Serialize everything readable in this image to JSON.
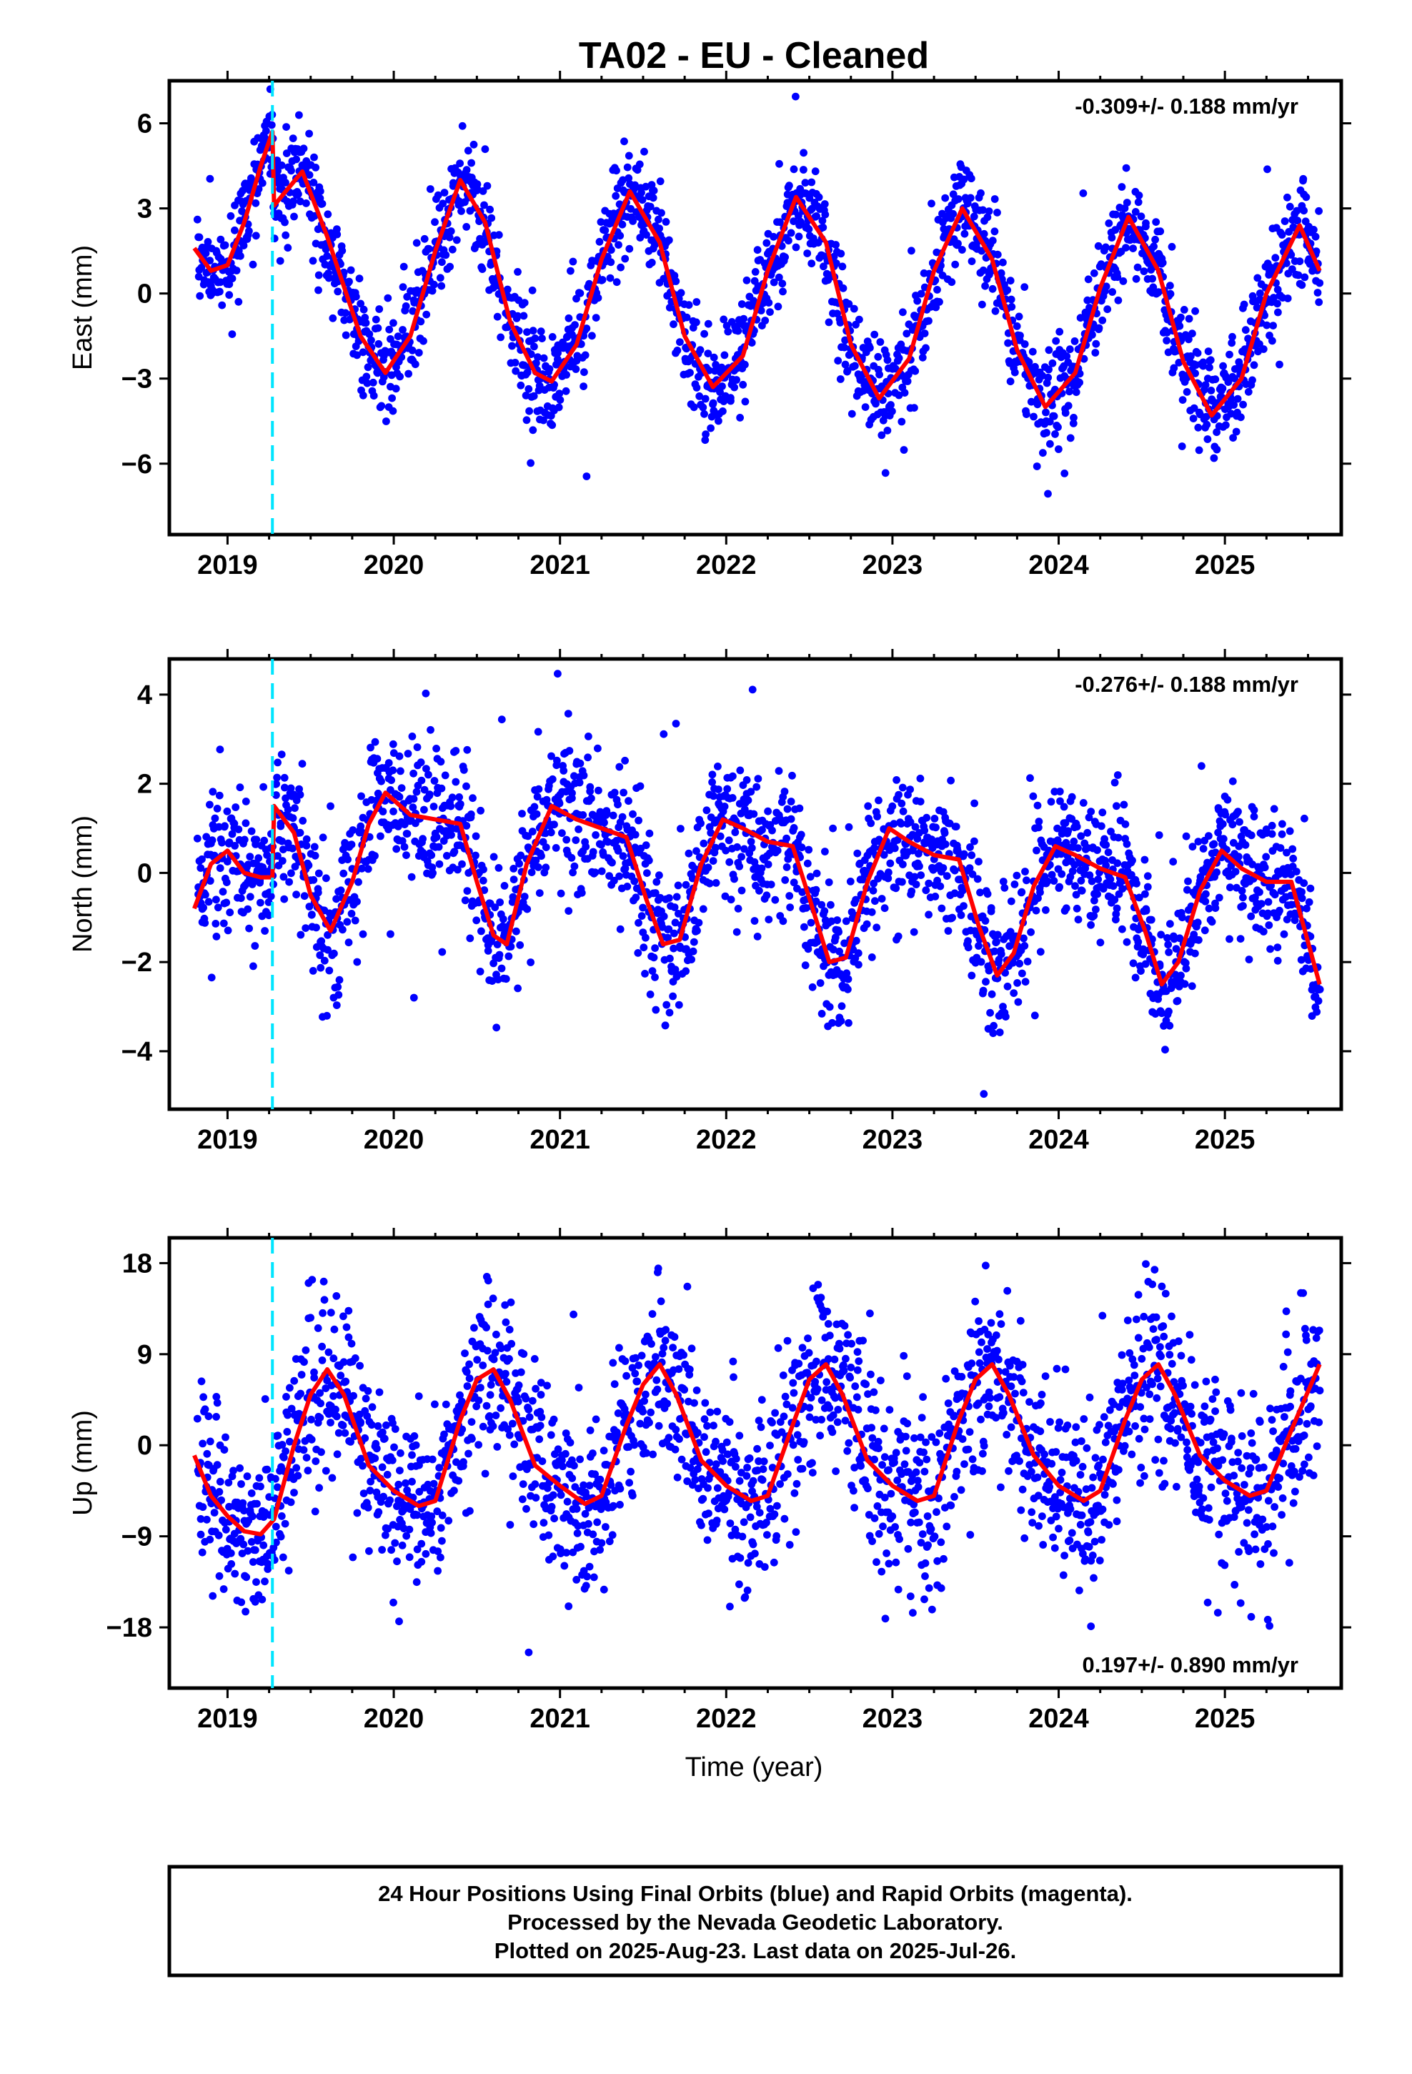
{
  "title": "TA02  - EU - Cleaned",
  "footer": {
    "lines": [
      "24 Hour Positions Using Final Orbits (blue) and Rapid Orbits (magenta).",
      "Processed by the Nevada Geodetic Laboratory.",
      "Plotted on 2025-Aug-23. Last data on 2025-Jul-26."
    ]
  },
  "colors": {
    "points": "#0000ff",
    "model": "#ff0000",
    "event_line": "#00e5ff",
    "frame": "#000000"
  },
  "chart_data": [
    {
      "type": "scatter",
      "component": "east",
      "ylabel": "East (mm)",
      "xlabel": "",
      "rate_text": "-0.309+/- 0.188 mm/yr",
      "rate_position": "top-right",
      "xlim": [
        2018.65,
        2025.7
      ],
      "ylim": [
        -8.5,
        7.5
      ],
      "xticks": [
        2019,
        2020,
        2021,
        2022,
        2023,
        2024,
        2025
      ],
      "yticks": [
        6,
        3,
        0,
        -3,
        -6
      ],
      "ytick_labels": [
        "6",
        "3",
        "0",
        "−3",
        "−6"
      ],
      "event_line_x": 2019.27,
      "model": {
        "x": [
          2018.8,
          2018.9,
          2019.0,
          2019.1,
          2019.2,
          2019.27,
          2019.28,
          2019.35,
          2019.45,
          2019.6,
          2019.8,
          2019.95,
          2020.1,
          2020.25,
          2020.4,
          2020.55,
          2020.7,
          2020.85,
          2020.95,
          2021.1,
          2021.25,
          2021.42,
          2021.6,
          2021.75,
          2021.92,
          2022.1,
          2022.25,
          2022.42,
          2022.6,
          2022.75,
          2022.92,
          2023.1,
          2023.25,
          2023.42,
          2023.6,
          2023.75,
          2023.92,
          2024.1,
          2024.25,
          2024.42,
          2024.6,
          2024.75,
          2024.92,
          2025.1,
          2025.25,
          2025.45,
          2025.57
        ],
        "y": [
          1.6,
          0.8,
          1.0,
          2.5,
          4.5,
          5.7,
          3.1,
          3.6,
          4.3,
          2.0,
          -1.5,
          -2.8,
          -1.5,
          1.5,
          4.0,
          2.5,
          -1.0,
          -2.8,
          -3.1,
          -1.8,
          1.2,
          3.6,
          1.8,
          -1.5,
          -3.3,
          -2.2,
          0.8,
          3.4,
          1.8,
          -1.8,
          -3.7,
          -2.3,
          0.8,
          3.0,
          1.2,
          -2.0,
          -4.0,
          -2.8,
          0.2,
          2.7,
          0.8,
          -2.4,
          -4.3,
          -3.0,
          0.0,
          2.4,
          0.8
        ]
      },
      "points": {
        "seed": 11,
        "x_start": 2018.82,
        "x_end": 2025.57,
        "count": 2250,
        "noise": 0.9,
        "outlier_rate": 0.04,
        "outlier_scale": 1.9
      }
    },
    {
      "type": "scatter",
      "component": "north",
      "ylabel": "North (mm)",
      "xlabel": "",
      "rate_text": "-0.276+/- 0.188 mm/yr",
      "rate_position": "top-right",
      "xlim": [
        2018.65,
        2025.7
      ],
      "ylim": [
        -5.3,
        4.8
      ],
      "xticks": [
        2019,
        2020,
        2021,
        2022,
        2023,
        2024,
        2025
      ],
      "yticks": [
        4,
        2,
        0,
        -2,
        -4
      ],
      "ytick_labels": [
        "4",
        "2",
        "0",
        "−2",
        "−4"
      ],
      "event_line_x": 2019.27,
      "model": {
        "x": [
          2018.8,
          2018.9,
          2019.0,
          2019.1,
          2019.2,
          2019.27,
          2019.28,
          2019.4,
          2019.5,
          2019.62,
          2019.75,
          2019.85,
          2019.95,
          2020.1,
          2020.25,
          2020.4,
          2020.5,
          2020.6,
          2020.68,
          2020.8,
          2020.95,
          2021.1,
          2021.25,
          2021.4,
          2021.52,
          2021.62,
          2021.72,
          2021.85,
          2021.98,
          2022.1,
          2022.25,
          2022.4,
          2022.52,
          2022.62,
          2022.72,
          2022.85,
          2022.98,
          2023.1,
          2023.25,
          2023.4,
          2023.52,
          2023.63,
          2023.73,
          2023.85,
          2023.98,
          2024.1,
          2024.25,
          2024.4,
          2024.52,
          2024.62,
          2024.72,
          2024.85,
          2024.98,
          2025.1,
          2025.25,
          2025.4,
          2025.57
        ],
        "y": [
          -0.8,
          0.2,
          0.5,
          0.0,
          -0.1,
          -0.1,
          1.5,
          0.9,
          -0.5,
          -1.3,
          -0.2,
          1.1,
          1.8,
          1.3,
          1.2,
          1.1,
          -0.2,
          -1.4,
          -1.6,
          0.2,
          1.5,
          1.2,
          1.0,
          0.8,
          -0.6,
          -1.6,
          -1.5,
          0.2,
          1.2,
          1.0,
          0.7,
          0.6,
          -0.8,
          -2.0,
          -1.9,
          -0.2,
          1.0,
          0.7,
          0.4,
          0.3,
          -1.2,
          -2.3,
          -1.8,
          -0.3,
          0.6,
          0.4,
          0.1,
          -0.1,
          -1.3,
          -2.5,
          -2.0,
          -0.4,
          0.5,
          0.1,
          -0.2,
          -0.2,
          -2.5
        ]
      },
      "points": {
        "seed": 22,
        "x_start": 2018.82,
        "x_end": 2025.57,
        "count": 2250,
        "noise": 0.75,
        "outlier_rate": 0.05,
        "outlier_scale": 2.2
      }
    },
    {
      "type": "scatter",
      "component": "up",
      "ylabel": "Up (mm)",
      "xlabel": "Time (year)",
      "rate_text": "0.197+/- 0.890 mm/yr",
      "rate_position": "bottom-right",
      "xlim": [
        2018.65,
        2025.7
      ],
      "ylim": [
        -24,
        20.5
      ],
      "xticks": [
        2019,
        2020,
        2021,
        2022,
        2023,
        2024,
        2025
      ],
      "yticks": [
        18,
        9,
        0,
        -9,
        -18
      ],
      "ytick_labels": [
        "18",
        "9",
        "0",
        "−9",
        "−18"
      ],
      "event_line_x": 2019.27,
      "model": {
        "x": [
          2018.8,
          2018.9,
          2019.0,
          2019.1,
          2019.2,
          2019.27,
          2019.28,
          2019.4,
          2019.5,
          2019.6,
          2019.7,
          2019.85,
          2020.0,
          2020.15,
          2020.25,
          2020.4,
          2020.5,
          2020.6,
          2020.7,
          2020.85,
          2021.0,
          2021.15,
          2021.25,
          2021.4,
          2021.5,
          2021.6,
          2021.7,
          2021.85,
          2022.0,
          2022.15,
          2022.25,
          2022.4,
          2022.5,
          2022.6,
          2022.7,
          2022.85,
          2023.0,
          2023.15,
          2023.25,
          2023.4,
          2023.5,
          2023.6,
          2023.7,
          2023.85,
          2024.0,
          2024.15,
          2024.25,
          2024.4,
          2024.5,
          2024.6,
          2024.7,
          2024.85,
          2025.0,
          2025.15,
          2025.25,
          2025.4,
          2025.57
        ],
        "y": [
          -1.0,
          -5.0,
          -7.0,
          -8.5,
          -8.8,
          -7.5,
          -7.3,
          0.0,
          5.0,
          7.5,
          5.0,
          -2.0,
          -4.5,
          -6.0,
          -5.5,
          2.5,
          6.5,
          7.5,
          4.5,
          -2.0,
          -4.0,
          -5.8,
          -5.0,
          2.0,
          6.0,
          8.0,
          5.0,
          -1.5,
          -4.0,
          -5.5,
          -5.0,
          2.0,
          6.5,
          8.0,
          5.0,
          -1.5,
          -4.0,
          -5.5,
          -5.0,
          2.5,
          6.5,
          8.0,
          5.0,
          -1.0,
          -4.0,
          -5.5,
          -4.5,
          2.5,
          6.5,
          8.0,
          5.0,
          -1.0,
          -3.5,
          -5.0,
          -4.5,
          1.5,
          8.0
        ]
      },
      "points": {
        "seed": 33,
        "x_start": 2018.82,
        "x_end": 2025.57,
        "count": 2250,
        "noise": 4.3,
        "outlier_rate": 0.03,
        "outlier_scale": 1.7
      }
    }
  ]
}
